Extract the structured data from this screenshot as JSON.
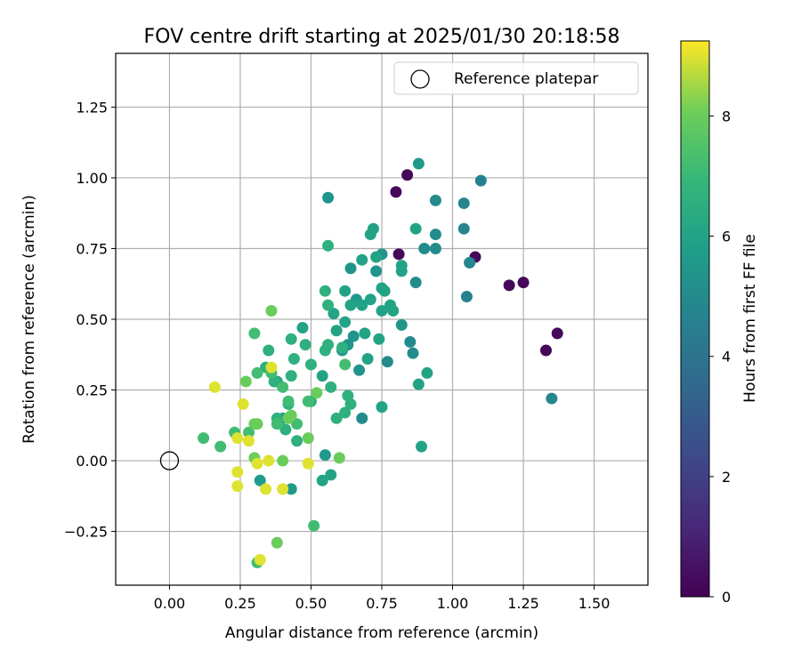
{
  "chart_data": {
    "type": "scatter",
    "title": "FOV centre drift starting at 2025/01/30 20:18:58",
    "xlabel": "Angular distance from reference (arcmin)",
    "ylabel": "Rotation from reference (arcmin)",
    "xlim": [
      -0.19,
      1.69
    ],
    "ylim": [
      -0.44,
      1.44
    ],
    "x_ticks": [
      "0.00",
      "0.25",
      "0.50",
      "0.75",
      "1.00",
      "1.25",
      "1.50"
    ],
    "y_ticks": [
      "−0.25",
      "0.00",
      "0.25",
      "0.50",
      "0.75",
      "1.00",
      "1.25"
    ],
    "grid": true,
    "legend": {
      "position": "top-right",
      "entries": [
        "Reference platepar"
      ]
    },
    "reference_point": {
      "x": 0.0,
      "y": 0.0
    },
    "colorbar": {
      "label": "Hours from first FF file",
      "range": [
        0,
        9.25
      ],
      "ticks": [
        "0",
        "2",
        "4",
        "6",
        "8"
      ],
      "colormap": "viridis"
    },
    "points": [
      {
        "x": 0.8,
        "y": 0.95,
        "c": 0.2
      },
      {
        "x": 0.84,
        "y": 1.01,
        "c": 0.2
      },
      {
        "x": 0.81,
        "y": 0.73,
        "c": 0.2
      },
      {
        "x": 1.08,
        "y": 0.72,
        "c": 0.2
      },
      {
        "x": 1.2,
        "y": 0.62,
        "c": 0.2
      },
      {
        "x": 1.25,
        "y": 0.63,
        "c": 0.2
      },
      {
        "x": 1.33,
        "y": 0.39,
        "c": 0.2
      },
      {
        "x": 1.37,
        "y": 0.45,
        "c": 0.2
      },
      {
        "x": 1.1,
        "y": 0.99,
        "c": 4.6
      },
      {
        "x": 1.04,
        "y": 0.91,
        "c": 4.8
      },
      {
        "x": 1.04,
        "y": 0.82,
        "c": 4.8
      },
      {
        "x": 1.06,
        "y": 0.7,
        "c": 4.8
      },
      {
        "x": 1.05,
        "y": 0.58,
        "c": 4.6
      },
      {
        "x": 1.35,
        "y": 0.22,
        "c": 4.8
      },
      {
        "x": 0.94,
        "y": 0.92,
        "c": 5.0
      },
      {
        "x": 0.94,
        "y": 0.8,
        "c": 5.0
      },
      {
        "x": 0.9,
        "y": 0.75,
        "c": 5.0
      },
      {
        "x": 0.94,
        "y": 0.75,
        "c": 5.0
      },
      {
        "x": 0.87,
        "y": 0.63,
        "c": 5.0
      },
      {
        "x": 0.85,
        "y": 0.42,
        "c": 5.0
      },
      {
        "x": 0.86,
        "y": 0.38,
        "c": 5.0
      },
      {
        "x": 0.77,
        "y": 0.35,
        "c": 5.0
      },
      {
        "x": 0.68,
        "y": 0.15,
        "c": 5.0
      },
      {
        "x": 0.88,
        "y": 1.05,
        "c": 5.6
      },
      {
        "x": 0.56,
        "y": 0.93,
        "c": 5.4
      },
      {
        "x": 0.75,
        "y": 0.73,
        "c": 5.4
      },
      {
        "x": 0.73,
        "y": 0.67,
        "c": 5.4
      },
      {
        "x": 0.64,
        "y": 0.68,
        "c": 5.4
      },
      {
        "x": 0.82,
        "y": 0.48,
        "c": 5.4
      },
      {
        "x": 0.65,
        "y": 0.44,
        "c": 5.4
      },
      {
        "x": 0.63,
        "y": 0.41,
        "c": 5.4
      },
      {
        "x": 0.67,
        "y": 0.32,
        "c": 5.4
      },
      {
        "x": 0.66,
        "y": 0.57,
        "c": 5.6
      },
      {
        "x": 0.61,
        "y": 0.39,
        "c": 5.6
      },
      {
        "x": 0.55,
        "y": 0.02,
        "c": 5.6
      },
      {
        "x": 0.43,
        "y": -0.1,
        "c": 5.6
      },
      {
        "x": 0.32,
        "y": -0.07,
        "c": 5.6
      },
      {
        "x": 0.87,
        "y": 0.82,
        "c": 6.0
      },
      {
        "x": 0.72,
        "y": 0.82,
        "c": 6.0
      },
      {
        "x": 0.71,
        "y": 0.8,
        "c": 6.0
      },
      {
        "x": 0.68,
        "y": 0.71,
        "c": 6.0
      },
      {
        "x": 0.73,
        "y": 0.72,
        "c": 6.0
      },
      {
        "x": 0.82,
        "y": 0.69,
        "c": 6.0
      },
      {
        "x": 0.82,
        "y": 0.67,
        "c": 6.0
      },
      {
        "x": 0.75,
        "y": 0.61,
        "c": 6.0
      },
      {
        "x": 0.76,
        "y": 0.6,
        "c": 6.0
      },
      {
        "x": 0.68,
        "y": 0.55,
        "c": 6.0
      },
      {
        "x": 0.71,
        "y": 0.57,
        "c": 6.0
      },
      {
        "x": 0.75,
        "y": 0.53,
        "c": 6.0
      },
      {
        "x": 0.78,
        "y": 0.55,
        "c": 6.0
      },
      {
        "x": 0.79,
        "y": 0.53,
        "c": 6.0
      },
      {
        "x": 0.62,
        "y": 0.6,
        "c": 6.0
      },
      {
        "x": 0.64,
        "y": 0.55,
        "c": 6.0
      },
      {
        "x": 0.58,
        "y": 0.52,
        "c": 6.0
      },
      {
        "x": 0.62,
        "y": 0.49,
        "c": 6.0
      },
      {
        "x": 0.59,
        "y": 0.46,
        "c": 6.0
      },
      {
        "x": 0.69,
        "y": 0.45,
        "c": 6.0
      },
      {
        "x": 0.74,
        "y": 0.43,
        "c": 6.0
      },
      {
        "x": 0.7,
        "y": 0.36,
        "c": 6.0
      },
      {
        "x": 0.91,
        "y": 0.31,
        "c": 6.0
      },
      {
        "x": 0.88,
        "y": 0.27,
        "c": 6.0
      },
      {
        "x": 0.75,
        "y": 0.19,
        "c": 6.0
      },
      {
        "x": 0.89,
        "y": 0.05,
        "c": 6.0
      },
      {
        "x": 0.54,
        "y": 0.3,
        "c": 6.0
      },
      {
        "x": 0.47,
        "y": 0.47,
        "c": 6.0
      },
      {
        "x": 0.38,
        "y": 0.28,
        "c": 6.0
      },
      {
        "x": 0.4,
        "y": 0.15,
        "c": 6.0
      },
      {
        "x": 0.54,
        "y": -0.07,
        "c": 6.0
      },
      {
        "x": 0.57,
        "y": -0.05,
        "c": 6.0
      },
      {
        "x": 0.56,
        "y": 0.76,
        "c": 6.6
      },
      {
        "x": 0.55,
        "y": 0.6,
        "c": 6.6
      },
      {
        "x": 0.56,
        "y": 0.55,
        "c": 6.6
      },
      {
        "x": 0.48,
        "y": 0.41,
        "c": 6.6
      },
      {
        "x": 0.56,
        "y": 0.41,
        "c": 6.6
      },
      {
        "x": 0.55,
        "y": 0.39,
        "c": 6.6
      },
      {
        "x": 0.61,
        "y": 0.4,
        "c": 6.6
      },
      {
        "x": 0.43,
        "y": 0.43,
        "c": 6.6
      },
      {
        "x": 0.44,
        "y": 0.36,
        "c": 6.6
      },
      {
        "x": 0.5,
        "y": 0.34,
        "c": 6.6
      },
      {
        "x": 0.35,
        "y": 0.39,
        "c": 6.6
      },
      {
        "x": 0.34,
        "y": 0.33,
        "c": 6.6
      },
      {
        "x": 0.37,
        "y": 0.28,
        "c": 6.6
      },
      {
        "x": 0.43,
        "y": 0.3,
        "c": 6.6
      },
      {
        "x": 0.57,
        "y": 0.26,
        "c": 6.6
      },
      {
        "x": 0.63,
        "y": 0.23,
        "c": 6.6
      },
      {
        "x": 0.64,
        "y": 0.2,
        "c": 6.6
      },
      {
        "x": 0.62,
        "y": 0.17,
        "c": 6.6
      },
      {
        "x": 0.59,
        "y": 0.15,
        "c": 6.6
      },
      {
        "x": 0.5,
        "y": 0.21,
        "c": 6.6
      },
      {
        "x": 0.42,
        "y": 0.2,
        "c": 6.6
      },
      {
        "x": 0.38,
        "y": 0.15,
        "c": 6.6
      },
      {
        "x": 0.41,
        "y": 0.11,
        "c": 6.6
      },
      {
        "x": 0.45,
        "y": 0.07,
        "c": 6.6
      },
      {
        "x": 0.3,
        "y": 0.45,
        "c": 7.2
      },
      {
        "x": 0.31,
        "y": 0.31,
        "c": 7.2
      },
      {
        "x": 0.36,
        "y": 0.31,
        "c": 7.2
      },
      {
        "x": 0.62,
        "y": 0.34,
        "c": 7.2
      },
      {
        "x": 0.4,
        "y": 0.26,
        "c": 7.2
      },
      {
        "x": 0.42,
        "y": 0.21,
        "c": 7.2
      },
      {
        "x": 0.45,
        "y": 0.13,
        "c": 7.2
      },
      {
        "x": 0.49,
        "y": 0.21,
        "c": 7.2
      },
      {
        "x": 0.38,
        "y": 0.13,
        "c": 7.2
      },
      {
        "x": 0.28,
        "y": 0.1,
        "c": 7.2
      },
      {
        "x": 0.23,
        "y": 0.1,
        "c": 7.2
      },
      {
        "x": 0.12,
        "y": 0.08,
        "c": 7.2
      },
      {
        "x": 0.18,
        "y": 0.05,
        "c": 7.2
      },
      {
        "x": 0.51,
        "y": -0.23,
        "c": 7.2
      },
      {
        "x": 0.31,
        "y": -0.36,
        "c": 7.2
      },
      {
        "x": 0.36,
        "y": 0.53,
        "c": 8.0
      },
      {
        "x": 0.27,
        "y": 0.28,
        "c": 8.0
      },
      {
        "x": 0.31,
        "y": 0.13,
        "c": 8.0
      },
      {
        "x": 0.3,
        "y": 0.13,
        "c": 8.0
      },
      {
        "x": 0.43,
        "y": 0.16,
        "c": 8.0
      },
      {
        "x": 0.42,
        "y": 0.15,
        "c": 8.0
      },
      {
        "x": 0.4,
        "y": 0.0,
        "c": 8.0
      },
      {
        "x": 0.49,
        "y": 0.08,
        "c": 8.0
      },
      {
        "x": 0.6,
        "y": 0.01,
        "c": 8.0
      },
      {
        "x": 0.3,
        "y": 0.01,
        "c": 8.0
      },
      {
        "x": 0.38,
        "y": -0.29,
        "c": 8.0
      },
      {
        "x": 0.52,
        "y": 0.24,
        "c": 8.0
      },
      {
        "x": 0.16,
        "y": 0.26,
        "c": 9.0
      },
      {
        "x": 0.26,
        "y": 0.2,
        "c": 9.0
      },
      {
        "x": 0.36,
        "y": 0.33,
        "c": 9.0
      },
      {
        "x": 0.24,
        "y": 0.08,
        "c": 9.0
      },
      {
        "x": 0.28,
        "y": 0.07,
        "c": 9.0
      },
      {
        "x": 0.31,
        "y": -0.01,
        "c": 9.0
      },
      {
        "x": 0.35,
        "y": 0.0,
        "c": 9.0
      },
      {
        "x": 0.49,
        "y": -0.01,
        "c": 9.0
      },
      {
        "x": 0.24,
        "y": -0.04,
        "c": 9.0
      },
      {
        "x": 0.24,
        "y": -0.09,
        "c": 9.0
      },
      {
        "x": 0.34,
        "y": -0.1,
        "c": 9.0
      },
      {
        "x": 0.4,
        "y": -0.1,
        "c": 9.0
      },
      {
        "x": 0.32,
        "y": -0.35,
        "c": 9.0
      }
    ]
  }
}
